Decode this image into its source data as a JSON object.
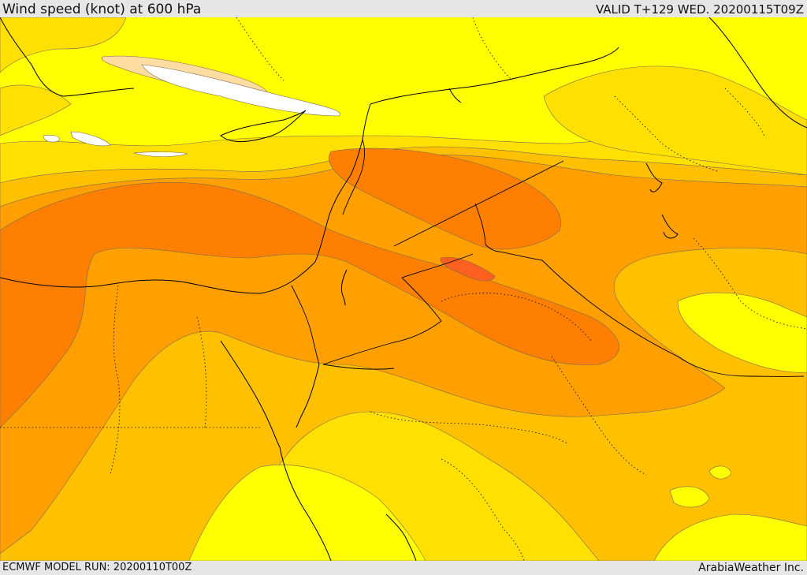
{
  "header": {
    "title": "Wind speed (knot) at 600 hPa",
    "valid": "VALID T+129 WED. 20200115T09Z"
  },
  "footer": {
    "model_run": "ECMWF MODEL RUN: 20200110T00Z",
    "credit": "ArabiaWeather Inc."
  },
  "colors": {
    "band_yellow": "#ffff00",
    "band_light_gold": "#ffe000",
    "band_gold": "#ffc000",
    "band_orange": "#ffa000",
    "band_dark_orange": "#ff8000",
    "band_red_orange": "#ff6020",
    "band_peach": "#ffdda0",
    "band_white": "#ffffff"
  }
}
